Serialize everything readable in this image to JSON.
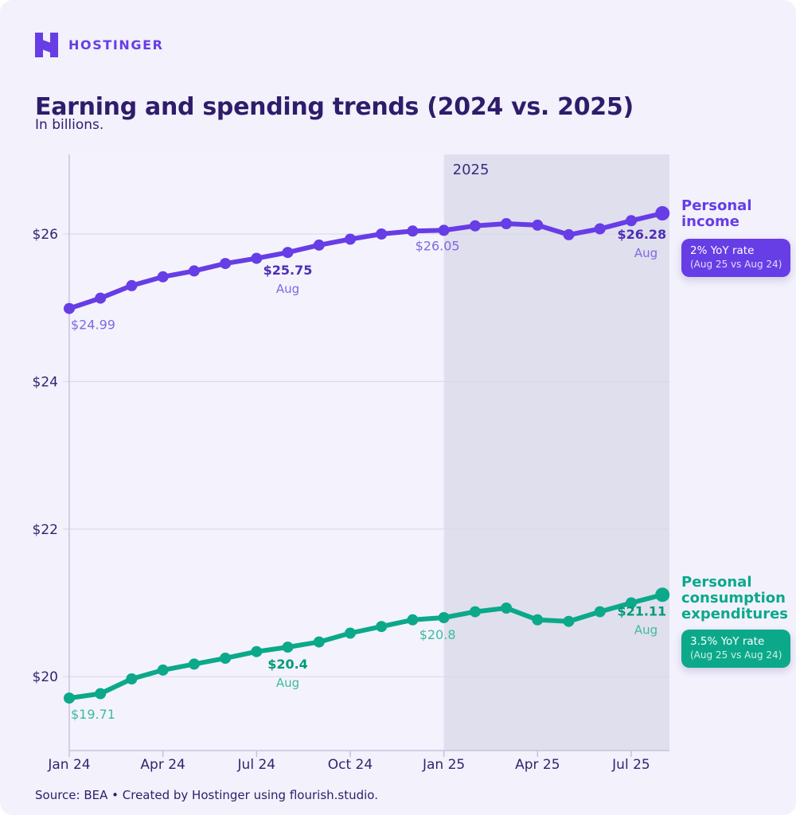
{
  "brand": {
    "logo_text": "HOSTINGER",
    "purple": "#673de6"
  },
  "header": {
    "title": "Earning and spending trends (2024 vs. 2025)",
    "subtitle": "In billions."
  },
  "chart_data": {
    "type": "line",
    "title": "Earning and spending trends (2024 vs. 2025)",
    "subtitle": "In billions.",
    "x": [
      "Jan 24",
      "Feb 24",
      "Mar 24",
      "Apr 24",
      "May 24",
      "Jun 24",
      "Jul 24",
      "Aug 24",
      "Sep 24",
      "Oct 24",
      "Nov 24",
      "Dec 24",
      "Jan 25",
      "Feb 25",
      "Mar 25",
      "Apr 25",
      "May 25",
      "Jun 25",
      "Jul 25",
      "Aug 25"
    ],
    "x_ticks": [
      {
        "label": "Jan 24",
        "month_index": 0
      },
      {
        "label": "Apr 24",
        "month_index": 3
      },
      {
        "label": "Jul 24",
        "month_index": 6
      },
      {
        "label": "Oct 24",
        "month_index": 9
      },
      {
        "label": "Jan 25",
        "month_index": 12
      },
      {
        "label": "Apr 25",
        "month_index": 15
      },
      {
        "label": "Jul 25",
        "month_index": 18
      }
    ],
    "y_ticks": [
      {
        "label": "$26",
        "value": 26
      },
      {
        "label": "$24",
        "value": 24
      },
      {
        "label": "$22",
        "value": 22
      },
      {
        "label": "$20",
        "value": 20
      }
    ],
    "ylim": [
      19.0,
      27.1
    ],
    "grid": "horizontal",
    "legend_position": "right",
    "shaded_region": {
      "label": "2025",
      "from_month_index": 12,
      "to_month_index": 19
    },
    "colors": {
      "band": "#e0dfee",
      "plot_bg": "#f4f3fd",
      "grid": "#d8d6e9",
      "axis": "#c6c3dd",
      "axis_text": "#33246e",
      "band_label": "#3b2b80"
    },
    "series": [
      {
        "id": "personal-income",
        "name": "Personal income",
        "color": "#673de6",
        "label_bold_color": "#4f2db5",
        "label_light_color": "#8168e0",
        "values": [
          24.99,
          25.13,
          25.3,
          25.42,
          25.5,
          25.6,
          25.67,
          25.75,
          25.85,
          25.93,
          26.0,
          26.04,
          26.05,
          26.11,
          26.14,
          26.12,
          25.99,
          26.07,
          26.18,
          26.28
        ],
        "annotations": [
          {
            "month_index": 0,
            "text": "$24.99",
            "bold": false,
            "anchor": "start",
            "dx": 2,
            "dy": 26
          },
          {
            "month_index": 7,
            "text": "$25.75",
            "sub": "Aug",
            "bold": true,
            "anchor": "middle",
            "dx": 0,
            "dy": 28,
            "dy_sub": 51
          },
          {
            "month_index": 12,
            "text": "$26.05",
            "bold": false,
            "anchor": "middle",
            "dx": -8,
            "dy": 25
          },
          {
            "month_index": 19,
            "text": "$26.28",
            "sub": "Aug",
            "bold": true,
            "anchor": "end",
            "dx": 5,
            "dy": 32,
            "dx_sub": -6,
            "dy_sub": 55
          }
        ],
        "legend": {
          "label": "Personal income",
          "badge_line1": "2% YoY rate",
          "badge_line2": "(Aug 25 vs Aug 24)"
        }
      },
      {
        "id": "personal-consumption-expenditures",
        "name": "Personal consumption expenditures",
        "color": "#0ba98a",
        "label_bold_color": "#009a78",
        "label_light_color": "#3dbba0",
        "values": [
          19.71,
          19.77,
          19.97,
          20.09,
          20.17,
          20.25,
          20.34,
          20.4,
          20.47,
          20.59,
          20.68,
          20.77,
          20.8,
          20.88,
          20.93,
          20.77,
          20.75,
          20.88,
          21.0,
          21.11
        ],
        "annotations": [
          {
            "month_index": 0,
            "text": "$19.71",
            "bold": false,
            "anchor": "start",
            "dx": 2,
            "dy": 26
          },
          {
            "month_index": 7,
            "text": "$20.4",
            "sub": "Aug",
            "bold": true,
            "anchor": "middle",
            "dx": 0,
            "dy": 27,
            "dy_sub": 50
          },
          {
            "month_index": 12,
            "text": "$20.8",
            "bold": false,
            "anchor": "middle",
            "dx": -8,
            "dy": 27
          },
          {
            "month_index": 19,
            "text": "$21.11",
            "sub": "Aug",
            "bold": true,
            "anchor": "end",
            "dx": 5,
            "dy": 26,
            "dx_sub": -6,
            "dy_sub": 49
          }
        ],
        "legend": {
          "label": "Personal consumption expenditures",
          "badge_line1": "3.5% YoY rate",
          "badge_line2": "(Aug 25 vs Aug 24)"
        }
      }
    ]
  },
  "footer": {
    "text": "Source: BEA • Created by Hostinger using flourish.studio."
  }
}
